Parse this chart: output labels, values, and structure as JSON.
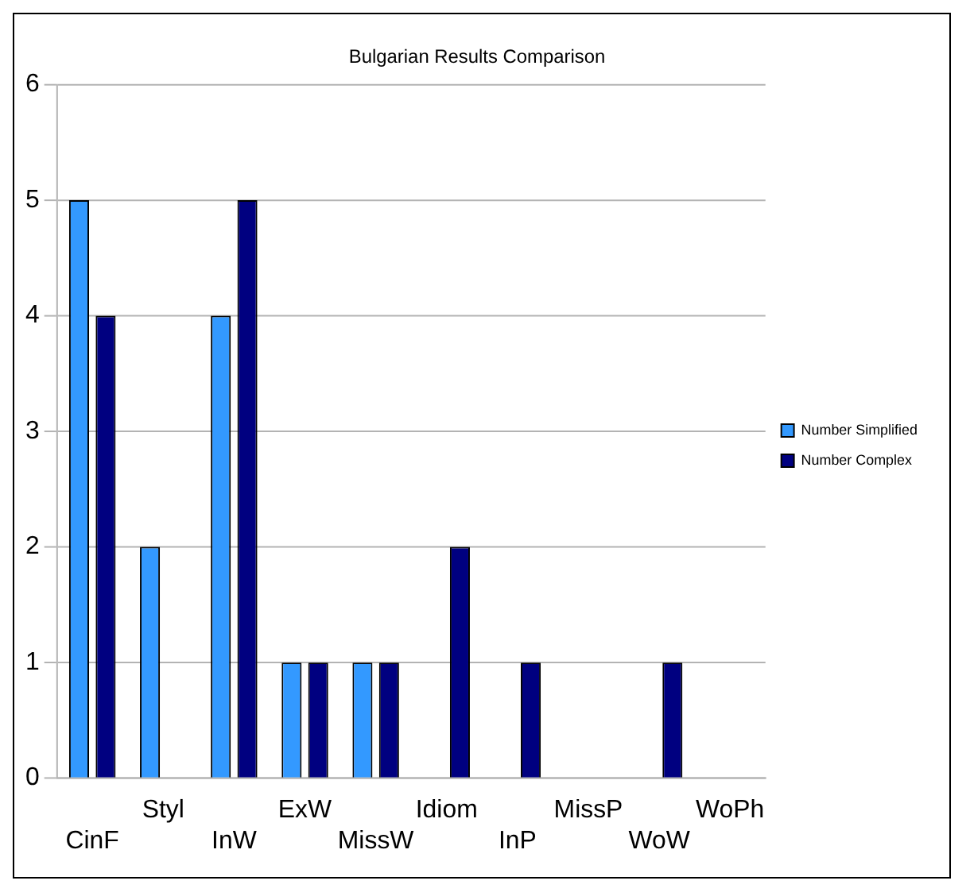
{
  "chart_data": {
    "type": "bar",
    "title": "Bulgarian Results Comparison",
    "categories": [
      "CinF",
      "Styl",
      "InW",
      "ExW",
      "MissW",
      "Idiom",
      "InP",
      "MissP",
      "WoW",
      "WoPh"
    ],
    "series": [
      {
        "name": "Number Simplified",
        "color": "#3399ff",
        "values": [
          5,
          2,
          4,
          1,
          1,
          0,
          0,
          0,
          0,
          0
        ]
      },
      {
        "name": "Number Complex",
        "color": "#000080",
        "values": [
          4,
          0,
          5,
          1,
          1,
          2,
          1,
          0,
          1,
          0
        ]
      }
    ],
    "ylim": [
      0,
      6
    ],
    "yticks": [
      0,
      1,
      2,
      3,
      4,
      5,
      6
    ],
    "grid": "y",
    "legend": "right"
  }
}
